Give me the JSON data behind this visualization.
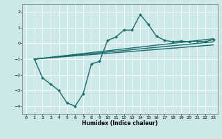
{
  "title": "",
  "xlabel": "Humidex (Indice chaleur)",
  "ylabel": "",
  "xlim": [
    -0.5,
    23.5
  ],
  "ylim": [
    -4.5,
    2.5
  ],
  "xticks": [
    0,
    1,
    2,
    3,
    4,
    5,
    6,
    7,
    8,
    9,
    10,
    11,
    12,
    13,
    14,
    15,
    16,
    17,
    18,
    19,
    20,
    21,
    22,
    23
  ],
  "yticks": [
    -4,
    -3,
    -2,
    -1,
    0,
    1,
    2
  ],
  "bg_color": "#cce8e8",
  "line_color": "#1a6b6b",
  "grid_color": "#ffffff",
  "series": [
    {
      "x": [
        1,
        2,
        3,
        4,
        5,
        6,
        7,
        8,
        9,
        10,
        11,
        12,
        13,
        14,
        15,
        16,
        17,
        18,
        19,
        20,
        21,
        22,
        23
      ],
      "y": [
        -1.0,
        -2.2,
        -2.6,
        -3.0,
        -3.8,
        -4.0,
        -3.2,
        -1.3,
        -1.15,
        0.2,
        0.4,
        0.85,
        0.85,
        1.85,
        1.2,
        0.45,
        0.2,
        0.1,
        0.15,
        0.1,
        0.15,
        0.1,
        0.25
      ],
      "has_marker": true,
      "markersize": 2.0,
      "linewidth": 1.0
    },
    {
      "x": [
        1,
        23
      ],
      "y": [
        -1.0,
        0.3
      ],
      "has_marker": false,
      "linewidth": 1.0
    },
    {
      "x": [
        1,
        23
      ],
      "y": [
        -1.0,
        0.1
      ],
      "has_marker": false,
      "linewidth": 1.0
    },
    {
      "x": [
        1,
        23
      ],
      "y": [
        -1.0,
        -0.1
      ],
      "has_marker": false,
      "linewidth": 1.0
    }
  ]
}
